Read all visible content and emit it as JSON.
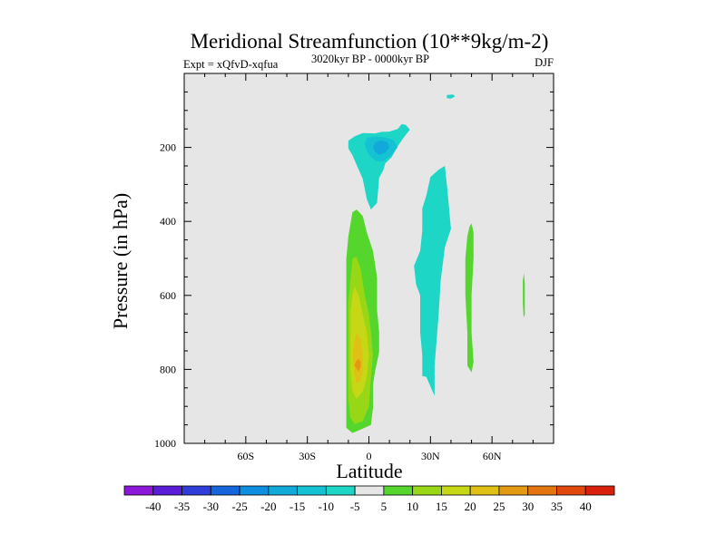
{
  "chart_data": {
    "type": "contour",
    "title": "Meridional Streamfunction (10**9kg/m-2)",
    "subtitle_left": "Expt = xQfvD-xqfua",
    "subtitle_center": "3020kyr BP - 0000kyr BP",
    "subtitle_right": "DJF",
    "xlabel": "Latitude",
    "ylabel": "Pressure (in hPa)",
    "xlim": [
      -90,
      90
    ],
    "ylim": [
      0,
      1000
    ],
    "y_inverted": true,
    "x_ticks": [
      {
        "value": -60,
        "label": "60S"
      },
      {
        "value": -30,
        "label": "30S"
      },
      {
        "value": 0,
        "label": "0"
      },
      {
        "value": 30,
        "label": "30N"
      },
      {
        "value": 60,
        "label": "60N"
      }
    ],
    "y_ticks": [
      {
        "value": 200,
        "label": "200"
      },
      {
        "value": 400,
        "label": "400"
      },
      {
        "value": 600,
        "label": "600"
      },
      {
        "value": 800,
        "label": "800"
      },
      {
        "value": 1000,
        "label": "1000"
      }
    ],
    "colorbar": {
      "labels": [
        "-40",
        "-35",
        "-30",
        "-25",
        "-20",
        "-15",
        "-10",
        "-5",
        "5",
        "10",
        "15",
        "20",
        "25",
        "30",
        "35",
        "40"
      ],
      "colors": [
        "#8c17d9",
        "#5a1cd6",
        "#2f3ed9",
        "#1566dd",
        "#0f8fe0",
        "#10a9da",
        "#14c2d3",
        "#1ed6c6",
        "#e6e6e6",
        "#55d62c",
        "#98d716",
        "#c6d715",
        "#e0c014",
        "#e39a12",
        "#e37410",
        "#e0480e",
        "#d9200c"
      ]
    },
    "contours": [
      {
        "name": "upper-negative-cell",
        "level": -5,
        "color": "#1ed6c6",
        "polygon": [
          [
            -10,
            182
          ],
          [
            -7,
            170
          ],
          [
            -3,
            161
          ],
          [
            3,
            162
          ],
          [
            6,
            158
          ],
          [
            10,
            157
          ],
          [
            14,
            150
          ],
          [
            16,
            137
          ],
          [
            18,
            139
          ],
          [
            20,
            152
          ],
          [
            17,
            173
          ],
          [
            14,
            197
          ],
          [
            11,
            227
          ],
          [
            8,
            243
          ],
          [
            7,
            262
          ],
          [
            5,
            282
          ],
          [
            4,
            350
          ],
          [
            1,
            368
          ],
          [
            -1,
            340
          ],
          [
            -3,
            285
          ],
          [
            -6,
            247
          ],
          [
            -8,
            221
          ],
          [
            -10,
            203
          ]
        ]
      },
      {
        "name": "upper-negative-core",
        "level": -10,
        "color": "#14c2d3",
        "polygon": [
          [
            -2,
            188
          ],
          [
            -1,
            174
          ],
          [
            3,
            170
          ],
          [
            8,
            173
          ],
          [
            12,
            180
          ],
          [
            14,
            199
          ],
          [
            11,
            221
          ],
          [
            7,
            237
          ],
          [
            4,
            238
          ],
          [
            1,
            226
          ],
          [
            -1,
            210
          ]
        ]
      },
      {
        "name": "upper-negative-innermost",
        "level": -15,
        "color": "#10a9da",
        "polygon": [
          [
            2,
            200
          ],
          [
            3,
            187
          ],
          [
            6,
            181
          ],
          [
            9,
            186
          ],
          [
            10,
            200
          ],
          [
            8,
            214
          ],
          [
            5,
            220
          ],
          [
            3,
            212
          ]
        ]
      },
      {
        "name": "mid-negative-cell",
        "level": -5,
        "color": "#1ed6c6",
        "polygon": [
          [
            25,
            480
          ],
          [
            26,
            425
          ],
          [
            26,
            365
          ],
          [
            28,
            330
          ],
          [
            30,
            280
          ],
          [
            34,
            260
          ],
          [
            37,
            250
          ],
          [
            38,
            300
          ],
          [
            39,
            360
          ],
          [
            40,
            420
          ],
          [
            37,
            470
          ],
          [
            35,
            560
          ],
          [
            34,
            650
          ],
          [
            33,
            722
          ],
          [
            32,
            790
          ],
          [
            32,
            872
          ],
          [
            30,
            846
          ],
          [
            28,
            820
          ],
          [
            26,
            818
          ],
          [
            26,
            762
          ],
          [
            25,
            700
          ],
          [
            25,
            600
          ],
          [
            23,
            570
          ],
          [
            22,
            520
          ]
        ]
      },
      {
        "name": "top-negative-patch",
        "level": -5,
        "color": "#1ed6c6",
        "polygon": [
          [
            38,
            67
          ],
          [
            38,
            58
          ],
          [
            41,
            57
          ],
          [
            42,
            62
          ],
          [
            40,
            68
          ]
        ]
      },
      {
        "name": "lower-positive-cell",
        "level": 5,
        "color": "#55d62c",
        "polygon": [
          [
            -8,
            375
          ],
          [
            -6,
            368
          ],
          [
            -3,
            385
          ],
          [
            -1,
            430
          ],
          [
            2,
            480
          ],
          [
            4,
            552
          ],
          [
            4,
            640
          ],
          [
            5,
            700
          ],
          [
            5,
            753
          ],
          [
            3,
            805
          ],
          [
            2,
            842
          ],
          [
            2,
            904
          ],
          [
            1,
            950
          ],
          [
            -3,
            960
          ],
          [
            -8,
            972
          ],
          [
            -11,
            958
          ],
          [
            -11,
            920
          ],
          [
            -11,
            860
          ],
          [
            -11,
            780
          ],
          [
            -11,
            700
          ],
          [
            -11,
            600
          ],
          [
            -11,
            500
          ],
          [
            -10,
            440
          ]
        ]
      },
      {
        "name": "lower-positive-core",
        "level": 10,
        "color": "#98d716",
        "polygon": [
          [
            -8,
            500
          ],
          [
            -6,
            496
          ],
          [
            -4,
            530
          ],
          [
            -2,
            600
          ],
          [
            0,
            650
          ],
          [
            1,
            700
          ],
          [
            2,
            760
          ],
          [
            1,
            820
          ],
          [
            0,
            900
          ],
          [
            -3,
            940
          ],
          [
            -7,
            948
          ],
          [
            -9,
            930
          ],
          [
            -10,
            880
          ],
          [
            -10,
            800
          ],
          [
            -10,
            700
          ],
          [
            -10,
            620
          ],
          [
            -9,
            560
          ]
        ]
      },
      {
        "name": "lower-positive-inner",
        "level": 15,
        "color": "#c6d715",
        "polygon": [
          [
            -7,
            575
          ],
          [
            -5,
            600
          ],
          [
            -3,
            650
          ],
          [
            -1,
            700
          ],
          [
            0,
            760
          ],
          [
            -1,
            820
          ],
          [
            -3,
            860
          ],
          [
            -6,
            880
          ],
          [
            -8,
            860
          ],
          [
            -9,
            800
          ],
          [
            -9,
            720
          ],
          [
            -9,
            650
          ],
          [
            -8,
            600
          ]
        ]
      },
      {
        "name": "lower-positive-maximum",
        "level": 20,
        "color": "#e0c014",
        "polygon": [
          [
            -6,
            700
          ],
          [
            -4,
            720
          ],
          [
            -3,
            760
          ],
          [
            -3,
            800
          ],
          [
            -4,
            830
          ],
          [
            -6,
            838
          ],
          [
            -7,
            810
          ],
          [
            -8,
            760
          ],
          [
            -7,
            725
          ]
        ]
      },
      {
        "name": "lower-positive-peak",
        "level": 25,
        "color": "#e39a12",
        "polygon": [
          [
            -5,
            772
          ],
          [
            -4,
            780
          ],
          [
            -4,
            795
          ],
          [
            -5,
            805
          ],
          [
            -6,
            800
          ],
          [
            -7,
            788
          ],
          [
            -6,
            776
          ]
        ]
      },
      {
        "name": "mid-positive-band",
        "level": 5,
        "color": "#55d62c",
        "polygon": [
          [
            49,
            415
          ],
          [
            50,
            405
          ],
          [
            51,
            430
          ],
          [
            51,
            500
          ],
          [
            50,
            600
          ],
          [
            50,
            700
          ],
          [
            51,
            780
          ],
          [
            50,
            808
          ],
          [
            48,
            790
          ],
          [
            48,
            700
          ],
          [
            47,
            600
          ],
          [
            47,
            500
          ],
          [
            48,
            440
          ]
        ]
      },
      {
        "name": "high-lat-positive-sliver",
        "level": 5,
        "color": "#55d62c",
        "polygon": [
          [
            75,
            560
          ],
          [
            75.6,
            540
          ],
          [
            76,
            570
          ],
          [
            76,
            610
          ],
          [
            76,
            652
          ],
          [
            75.4,
            660
          ],
          [
            75,
            620
          ]
        ]
      }
    ]
  }
}
